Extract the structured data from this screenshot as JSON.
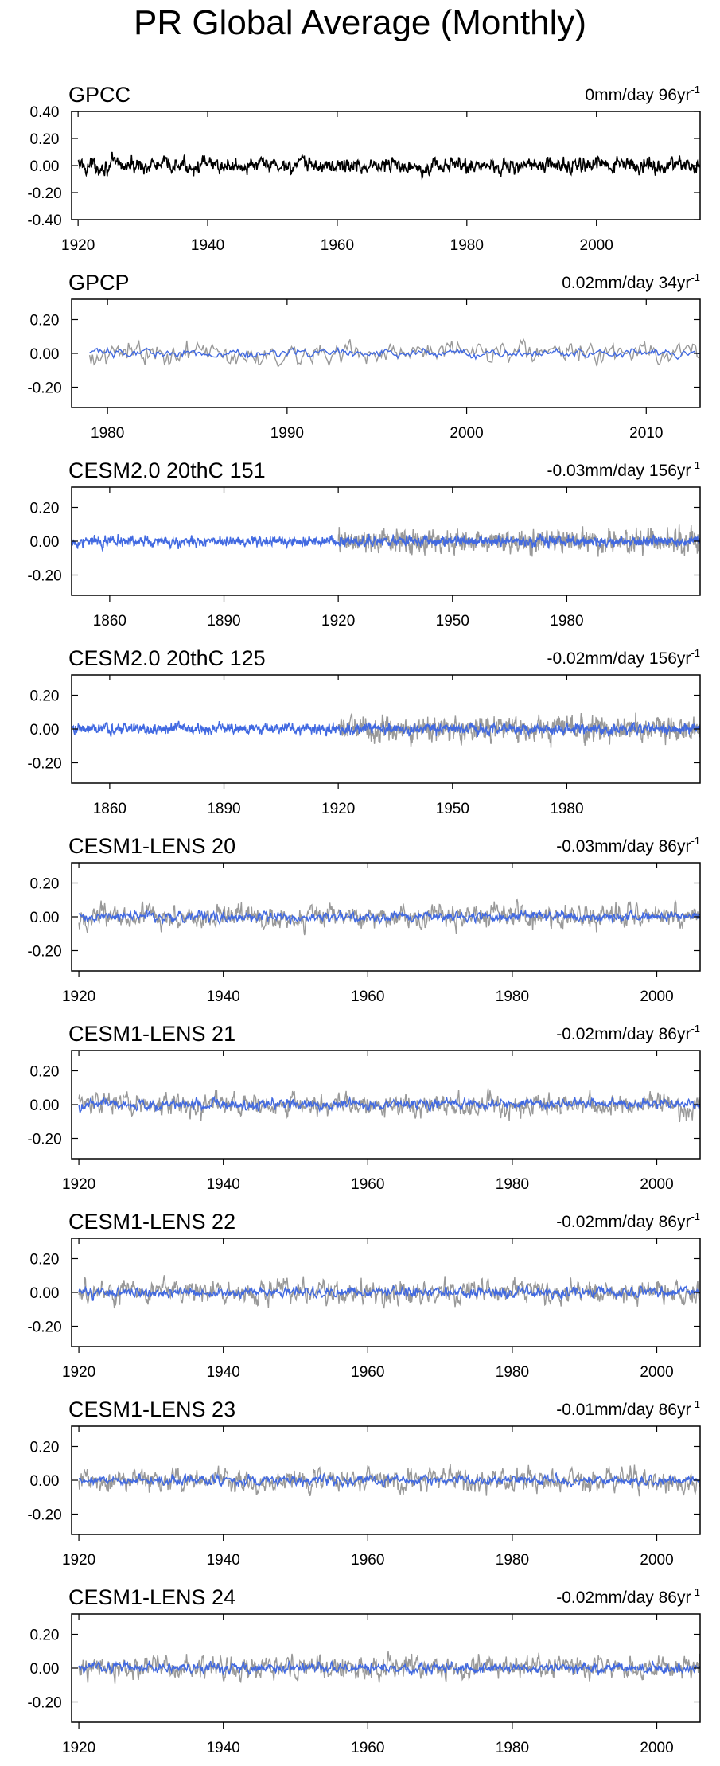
{
  "page_title": "PR Global Average (Monthly)",
  "chart_data": [
    {
      "type": "line",
      "title": "GPCC",
      "trend_label": "0mm/day 96yr",
      "trend_sup": "-1",
      "xlim": [
        1919,
        2016
      ],
      "ylim": [
        -0.4,
        0.4
      ],
      "yticks": [
        -0.4,
        -0.2,
        0.0,
        0.2,
        0.4
      ],
      "ytick_labels": [
        "-0.40",
        "-0.20",
        "0.00",
        "0.20",
        "0.40"
      ],
      "xticks": [
        1920,
        1940,
        1960,
        1980,
        2000
      ],
      "xtick_labels": [
        "1920",
        "1940",
        "1960",
        "1980",
        "2000"
      ],
      "obs": {
        "x_start": 1920,
        "x_end": 2016,
        "amp": 0.08,
        "color": "#000000"
      },
      "model": null
    },
    {
      "type": "line",
      "title": "GPCP",
      "trend_label": "0.02mm/day 34yr",
      "trend_sup": "-1",
      "xlim": [
        1978,
        2013
      ],
      "ylim": [
        -0.32,
        0.32
      ],
      "yticks": [
        -0.2,
        0.0,
        0.2
      ],
      "ytick_labels": [
        "-0.20",
        "0.00",
        "0.20"
      ],
      "xticks": [
        1980,
        1990,
        2000,
        2010
      ],
      "xtick_labels": [
        "1980",
        "1990",
        "2000",
        "2010"
      ],
      "obs": {
        "x_start": 1979,
        "x_end": 2013,
        "amp": 0.09,
        "color": "#999999"
      },
      "model": {
        "x_start": 1979,
        "x_end": 2013,
        "amp": 0.035,
        "color": "#4169e1"
      }
    },
    {
      "type": "line",
      "title": "CESM2.0 20thC 151",
      "trend_label": "-0.03mm/day 156yr",
      "trend_sup": "-1",
      "xlim": [
        1850,
        2015
      ],
      "ylim": [
        -0.32,
        0.32
      ],
      "yticks": [
        -0.2,
        0.0,
        0.2
      ],
      "ytick_labels": [
        "-0.20",
        "0.00",
        "0.20"
      ],
      "xticks": [
        1860,
        1890,
        1920,
        1950,
        1980
      ],
      "xtick_labels": [
        "1860",
        "1890",
        "1920",
        "1950",
        "1980"
      ],
      "obs": {
        "x_start": 1920,
        "x_end": 2015,
        "amp": 0.09,
        "color": "#999999"
      },
      "model": {
        "x_start": 1850,
        "x_end": 2015,
        "amp": 0.04,
        "color": "#4169e1"
      }
    },
    {
      "type": "line",
      "title": "CESM2.0 20thC 125",
      "trend_label": "-0.02mm/day 156yr",
      "trend_sup": "-1",
      "xlim": [
        1850,
        2015
      ],
      "ylim": [
        -0.32,
        0.32
      ],
      "yticks": [
        -0.2,
        0.0,
        0.2
      ],
      "ytick_labels": [
        "-0.20",
        "0.00",
        "0.20"
      ],
      "xticks": [
        1860,
        1890,
        1920,
        1950,
        1980
      ],
      "xtick_labels": [
        "1860",
        "1890",
        "1920",
        "1950",
        "1980"
      ],
      "obs": {
        "x_start": 1920,
        "x_end": 2015,
        "amp": 0.09,
        "color": "#999999"
      },
      "model": {
        "x_start": 1850,
        "x_end": 2015,
        "amp": 0.04,
        "color": "#4169e1"
      }
    },
    {
      "type": "line",
      "title": "CESM1-LENS 20",
      "trend_label": "-0.03mm/day 86yr",
      "trend_sup": "-1",
      "xlim": [
        1919,
        2006
      ],
      "ylim": [
        -0.32,
        0.32
      ],
      "yticks": [
        -0.2,
        0.0,
        0.2
      ],
      "ytick_labels": [
        "-0.20",
        "0.00",
        "0.20"
      ],
      "xticks": [
        1920,
        1940,
        1960,
        1980,
        2000
      ],
      "xtick_labels": [
        "1920",
        "1940",
        "1960",
        "1980",
        "2000"
      ],
      "obs": {
        "x_start": 1920,
        "x_end": 2006,
        "amp": 0.09,
        "color": "#999999"
      },
      "model": {
        "x_start": 1920,
        "x_end": 2006,
        "amp": 0.04,
        "color": "#4169e1"
      }
    },
    {
      "type": "line",
      "title": "CESM1-LENS 21",
      "trend_label": "-0.02mm/day 86yr",
      "trend_sup": "-1",
      "xlim": [
        1919,
        2006
      ],
      "ylim": [
        -0.32,
        0.32
      ],
      "yticks": [
        -0.2,
        0.0,
        0.2
      ],
      "ytick_labels": [
        "-0.20",
        "0.00",
        "0.20"
      ],
      "xticks": [
        1920,
        1940,
        1960,
        1980,
        2000
      ],
      "xtick_labels": [
        "1920",
        "1940",
        "1960",
        "1980",
        "2000"
      ],
      "obs": {
        "x_start": 1920,
        "x_end": 2006,
        "amp": 0.09,
        "color": "#999999"
      },
      "model": {
        "x_start": 1920,
        "x_end": 2006,
        "amp": 0.04,
        "color": "#4169e1"
      }
    },
    {
      "type": "line",
      "title": "CESM1-LENS 22",
      "trend_label": "-0.02mm/day 86yr",
      "trend_sup": "-1",
      "xlim": [
        1919,
        2006
      ],
      "ylim": [
        -0.32,
        0.32
      ],
      "yticks": [
        -0.2,
        0.0,
        0.2
      ],
      "ytick_labels": [
        "-0.20",
        "0.00",
        "0.20"
      ],
      "xticks": [
        1920,
        1940,
        1960,
        1980,
        2000
      ],
      "xtick_labels": [
        "1920",
        "1940",
        "1960",
        "1980",
        "2000"
      ],
      "obs": {
        "x_start": 1920,
        "x_end": 2006,
        "amp": 0.09,
        "color": "#999999"
      },
      "model": {
        "x_start": 1920,
        "x_end": 2006,
        "amp": 0.04,
        "color": "#4169e1"
      }
    },
    {
      "type": "line",
      "title": "CESM1-LENS 23",
      "trend_label": "-0.01mm/day 86yr",
      "trend_sup": "-1",
      "xlim": [
        1919,
        2006
      ],
      "ylim": [
        -0.32,
        0.32
      ],
      "yticks": [
        -0.2,
        0.0,
        0.2
      ],
      "ytick_labels": [
        "-0.20",
        "0.00",
        "0.20"
      ],
      "xticks": [
        1920,
        1940,
        1960,
        1980,
        2000
      ],
      "xtick_labels": [
        "1920",
        "1940",
        "1960",
        "1980",
        "2000"
      ],
      "obs": {
        "x_start": 1920,
        "x_end": 2006,
        "amp": 0.09,
        "color": "#999999"
      },
      "model": {
        "x_start": 1920,
        "x_end": 2006,
        "amp": 0.04,
        "color": "#4169e1"
      }
    },
    {
      "type": "line",
      "title": "CESM1-LENS 24",
      "trend_label": "-0.02mm/day 86yr",
      "trend_sup": "-1",
      "xlim": [
        1919,
        2006
      ],
      "ylim": [
        -0.32,
        0.32
      ],
      "yticks": [
        -0.2,
        0.0,
        0.2
      ],
      "ytick_labels": [
        "-0.20",
        "0.00",
        "0.20"
      ],
      "xticks": [
        1920,
        1940,
        1960,
        1980,
        2000
      ],
      "xtick_labels": [
        "1920",
        "1940",
        "1960",
        "1980",
        "2000"
      ],
      "obs": {
        "x_start": 1920,
        "x_end": 2006,
        "amp": 0.09,
        "color": "#999999"
      },
      "model": {
        "x_start": 1920,
        "x_end": 2006,
        "amp": 0.04,
        "color": "#4169e1"
      }
    }
  ]
}
